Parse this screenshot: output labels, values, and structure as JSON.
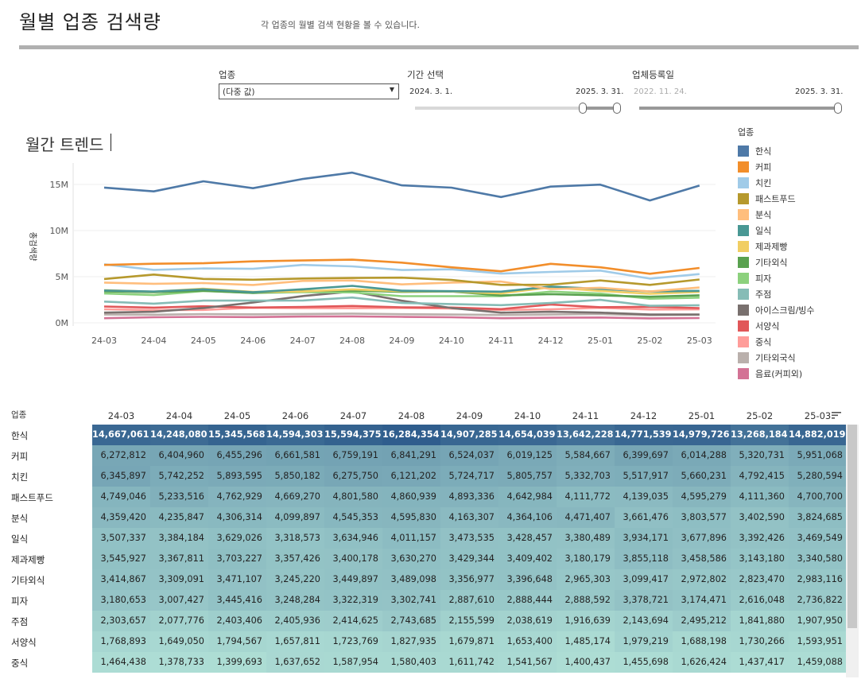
{
  "header": {
    "title": "월별 업종 검색량",
    "subtitle": "각 업종의 월별 검색 현황을 볼 수 있습니다."
  },
  "filters": {
    "industry": {
      "label": "업종",
      "value": "(다중 값)"
    },
    "period": {
      "label": "기간 선택",
      "start": "2024. 3. 1.",
      "end": "2025. 3. 31."
    },
    "registered": {
      "label": "업체등록일",
      "start": "2022. 11. 24.",
      "end": "2025. 3. 31."
    }
  },
  "chart_title": "월간 트렌드",
  "colors": {
    "한식": "#4e79a7",
    "커피": "#f28e2b",
    "치킨": "#a0cbe8",
    "패스트푸드": "#b6992d",
    "분식": "#ffbe7d",
    "일식": "#499894",
    "제과제빵": "#f1ce63",
    "기타외식": "#59a14f",
    "피자": "#8cd17d",
    "주점": "#86bcb6",
    "아이스크림/빙수": "#79706e",
    "서양식": "#e15759",
    "중식": "#ff9d9a",
    "기타외국식": "#bab0ac",
    "음료(커피외)": "#d37295"
  },
  "legend": {
    "title": "업종",
    "items": [
      "한식",
      "커피",
      "치킨",
      "패스트푸드",
      "분식",
      "일식",
      "제과제빵",
      "기타외식",
      "피자",
      "주점",
      "아이스크림/빙수",
      "서양식",
      "중식",
      "기타외국식",
      "음료(커피외)"
    ]
  },
  "chart_data": {
    "type": "line",
    "title": "월간 트렌드",
    "xlabel": "",
    "ylabel": "총검색량",
    "ylim": [
      0,
      17500000
    ],
    "yticks": [
      "0M",
      "5M",
      "10M",
      "15M"
    ],
    "x": [
      "24-03",
      "24-04",
      "24-05",
      "24-06",
      "24-07",
      "24-08",
      "24-09",
      "24-10",
      "24-11",
      "24-12",
      "25-01",
      "25-02",
      "25-03"
    ],
    "series": [
      {
        "name": "한식",
        "values": [
          14667061,
          14248080,
          15345568,
          14594303,
          15594375,
          16284354,
          14907285,
          14654039,
          13642228,
          14771539,
          14979726,
          13268184,
          14882019
        ]
      },
      {
        "name": "커피",
        "values": [
          6272812,
          6404960,
          6455296,
          6661581,
          6759191,
          6841291,
          6524037,
          6019125,
          5584667,
          6399697,
          6014288,
          5320731,
          5951068
        ]
      },
      {
        "name": "치킨",
        "values": [
          6345897,
          5742252,
          5893595,
          5850182,
          6275750,
          6121202,
          5724717,
          5805757,
          5332703,
          5517917,
          5660231,
          4792415,
          5280594
        ]
      },
      {
        "name": "패스트푸드",
        "values": [
          4749046,
          5233516,
          4762929,
          4669270,
          4801580,
          4860939,
          4893336,
          4642984,
          4111772,
          4139035,
          4595279,
          4111360,
          4700700
        ]
      },
      {
        "name": "분식",
        "values": [
          4359420,
          4235847,
          4306314,
          4099897,
          4545353,
          4595830,
          4163307,
          4364106,
          4471407,
          3661476,
          3803577,
          3402590,
          3824685
        ]
      },
      {
        "name": "일식",
        "values": [
          3507337,
          3384184,
          3629026,
          3318573,
          3634946,
          4011157,
          3473535,
          3428457,
          3380489,
          3934171,
          3677896,
          3392426,
          3469549
        ]
      },
      {
        "name": "제과제빵",
        "values": [
          3545927,
          3367811,
          3703227,
          3357426,
          3400178,
          3630270,
          3429344,
          3409402,
          3180179,
          3855118,
          3458586,
          3143180,
          3340580
        ]
      },
      {
        "name": "기타외식",
        "values": [
          3414867,
          3309091,
          3471107,
          3245220,
          3449897,
          3489098,
          3356977,
          3396648,
          2965303,
          3099417,
          2972802,
          2823470,
          2983116
        ]
      },
      {
        "name": "피자",
        "values": [
          3180653,
          3007427,
          3445416,
          3248284,
          3322319,
          3302741,
          2887610,
          2888444,
          2888592,
          3378721,
          3174471,
          2616048,
          2736822
        ]
      },
      {
        "name": "주점",
        "values": [
          2303657,
          2077776,
          2403406,
          2405936,
          2414625,
          2743685,
          2155599,
          2038619,
          1916639,
          2143694,
          2495212,
          1841880,
          1907950
        ]
      },
      {
        "name": "아이스크림/빙수",
        "values": [
          1100000,
          1200000,
          1600000,
          2200000,
          2900000,
          3400000,
          2400000,
          1600000,
          1100000,
          1200000,
          1100000,
          900000,
          900000
        ]
      },
      {
        "name": "서양식",
        "values": [
          1768893,
          1649050,
          1794567,
          1657811,
          1723769,
          1827935,
          1679871,
          1653400,
          1485174,
          1979219,
          1688198,
          1730266,
          1593951
        ]
      },
      {
        "name": "중식",
        "values": [
          1464438,
          1378733,
          1399693,
          1637652,
          1587954,
          1580403,
          1611742,
          1541567,
          1400437,
          1455698,
          1626424,
          1437417,
          1459088
        ]
      },
      {
        "name": "기타외국식",
        "values": [
          900000,
          880000,
          950000,
          920000,
          960000,
          1000000,
          930000,
          900000,
          850000,
          900000,
          950000,
          820000,
          880000
        ]
      },
      {
        "name": "음료(커피외)",
        "values": [
          500000,
          600000,
          650000,
          620000,
          680000,
          700000,
          650000,
          600000,
          500000,
          550000,
          580000,
          480000,
          520000
        ]
      }
    ]
  },
  "table": {
    "row_header": "업종",
    "rows": [
      {
        "label": "한식",
        "values": [
          "14,667,061",
          "14,248,080",
          "15,345,568",
          "14,594,303",
          "15,594,375",
          "16,284,354",
          "14,907,285",
          "14,654,039",
          "13,642,228",
          "14,771,539",
          "14,979,726",
          "13,268,184",
          "14,882,019"
        ]
      },
      {
        "label": "커피",
        "values": [
          "6,272,812",
          "6,404,960",
          "6,455,296",
          "6,661,581",
          "6,759,191",
          "6,841,291",
          "6,524,037",
          "6,019,125",
          "5,584,667",
          "6,399,697",
          "6,014,288",
          "5,320,731",
          "5,951,068"
        ]
      },
      {
        "label": "치킨",
        "values": [
          "6,345,897",
          "5,742,252",
          "5,893,595",
          "5,850,182",
          "6,275,750",
          "6,121,202",
          "5,724,717",
          "5,805,757",
          "5,332,703",
          "5,517,917",
          "5,660,231",
          "4,792,415",
          "5,280,594"
        ]
      },
      {
        "label": "패스트푸드",
        "values": [
          "4,749,046",
          "5,233,516",
          "4,762,929",
          "4,669,270",
          "4,801,580",
          "4,860,939",
          "4,893,336",
          "4,642,984",
          "4,111,772",
          "4,139,035",
          "4,595,279",
          "4,111,360",
          "4,700,700"
        ]
      },
      {
        "label": "분식",
        "values": [
          "4,359,420",
          "4,235,847",
          "4,306,314",
          "4,099,897",
          "4,545,353",
          "4,595,830",
          "4,163,307",
          "4,364,106",
          "4,471,407",
          "3,661,476",
          "3,803,577",
          "3,402,590",
          "3,824,685"
        ]
      },
      {
        "label": "일식",
        "values": [
          "3,507,337",
          "3,384,184",
          "3,629,026",
          "3,318,573",
          "3,634,946",
          "4,011,157",
          "3,473,535",
          "3,428,457",
          "3,380,489",
          "3,934,171",
          "3,677,896",
          "3,392,426",
          "3,469,549"
        ]
      },
      {
        "label": "제과제빵",
        "values": [
          "3,545,927",
          "3,367,811",
          "3,703,227",
          "3,357,426",
          "3,400,178",
          "3,630,270",
          "3,429,344",
          "3,409,402",
          "3,180,179",
          "3,855,118",
          "3,458,586",
          "3,143,180",
          "3,340,580"
        ]
      },
      {
        "label": "기타외식",
        "values": [
          "3,414,867",
          "3,309,091",
          "3,471,107",
          "3,245,220",
          "3,449,897",
          "3,489,098",
          "3,356,977",
          "3,396,648",
          "2,965,303",
          "3,099,417",
          "2,972,802",
          "2,823,470",
          "2,983,116"
        ]
      },
      {
        "label": "피자",
        "values": [
          "3,180,653",
          "3,007,427",
          "3,445,416",
          "3,248,284",
          "3,322,319",
          "3,302,741",
          "2,887,610",
          "2,888,444",
          "2,888,592",
          "3,378,721",
          "3,174,471",
          "2,616,048",
          "2,736,822"
        ]
      },
      {
        "label": "주점",
        "values": [
          "2,303,657",
          "2,077,776",
          "2,403,406",
          "2,405,936",
          "2,414,625",
          "2,743,685",
          "2,155,599",
          "2,038,619",
          "1,916,639",
          "2,143,694",
          "2,495,212",
          "1,841,880",
          "1,907,950"
        ]
      },
      {
        "label": "서양식",
        "values": [
          "1,768,893",
          "1,649,050",
          "1,794,567",
          "1,657,811",
          "1,723,769",
          "1,827,935",
          "1,679,871",
          "1,653,400",
          "1,485,174",
          "1,979,219",
          "1,688,198",
          "1,730,266",
          "1,593,951"
        ]
      },
      {
        "label": "중식",
        "values": [
          "1,464,438",
          "1,378,733",
          "1,399,693",
          "1,637,652",
          "1,587,954",
          "1,580,403",
          "1,611,742",
          "1,541,567",
          "1,400,437",
          "1,455,698",
          "1,626,424",
          "1,437,417",
          "1,459,088"
        ]
      }
    ]
  }
}
